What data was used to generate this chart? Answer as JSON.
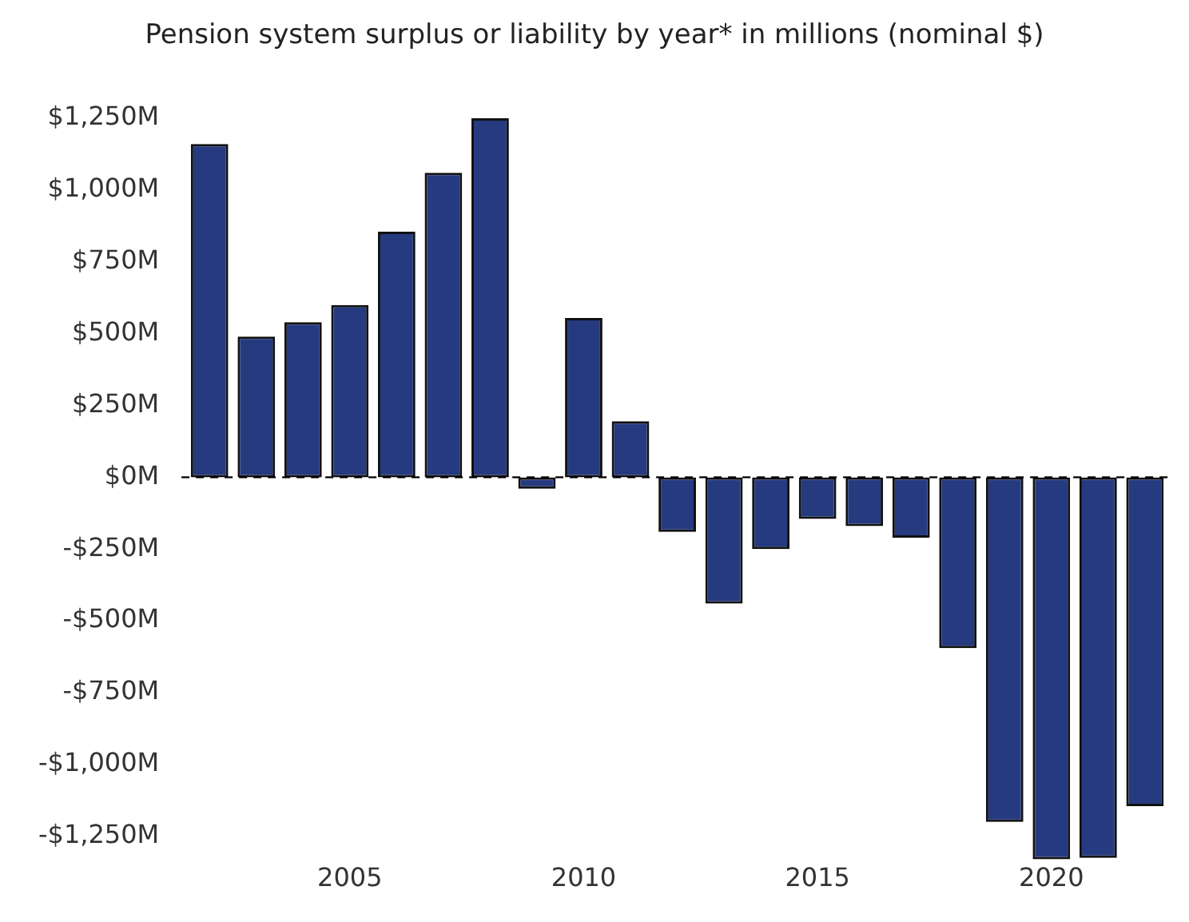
{
  "chart_data": {
    "type": "bar",
    "subtitle": "Pension system surplus or liability by year* in millions (nominal $)",
    "x": [
      2002,
      2003,
      2004,
      2005,
      2006,
      2007,
      2008,
      2009,
      2010,
      2011,
      2012,
      2013,
      2014,
      2015,
      2016,
      2017,
      2018,
      2019,
      2020,
      2021,
      2022
    ],
    "values": [
      1160,
      490,
      540,
      600,
      855,
      1060,
      1250,
      -40,
      555,
      195,
      -190,
      -440,
      -250,
      -145,
      -170,
      -210,
      -595,
      -1200,
      -1330,
      -1325,
      -1145
    ],
    "color": "#263a80",
    "xlim": [
      2001.4,
      2022.6
    ],
    "xticks": [
      2005,
      2010,
      2015,
      2020
    ],
    "ylim": [
      -1330,
      1250
    ],
    "yticks": [
      {
        "value": 1250,
        "label": "$1,250M"
      },
      {
        "value": 1000,
        "label": "$1,000M"
      },
      {
        "value": 750,
        "label": "$750M"
      },
      {
        "value": 500,
        "label": "$500M"
      },
      {
        "value": 250,
        "label": "$250M"
      },
      {
        "value": 0,
        "label": "$0M"
      },
      {
        "value": -250,
        "label": "-$250M"
      },
      {
        "value": -500,
        "label": "-$500M"
      },
      {
        "value": -750,
        "label": "-$750M"
      },
      {
        "value": -1000,
        "label": "-$1,000M"
      },
      {
        "value": -1250,
        "label": "-$1,250M"
      }
    ],
    "ref_lines": [
      {
        "axis": "y",
        "value": 0,
        "color": "#000000",
        "line_style": "dashed"
      }
    ],
    "grid": false,
    "legend": false
  }
}
